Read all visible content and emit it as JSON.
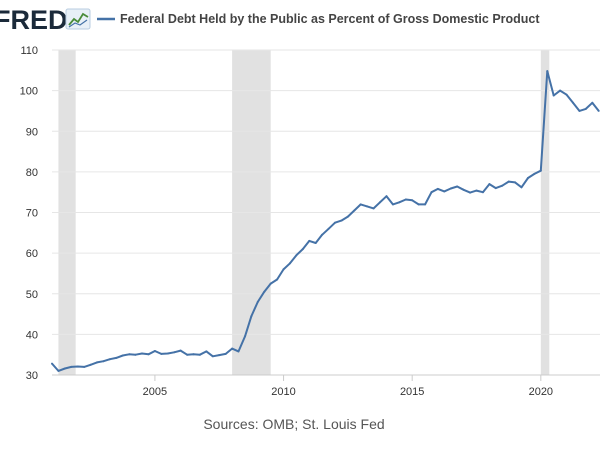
{
  "header": {
    "logo_text": "FRED",
    "logo_icon": "chart-line-icon"
  },
  "chart_data": {
    "type": "line",
    "title": "",
    "xlabel": "",
    "ylabel": "",
    "xlim": [
      2001.0,
      2022.3
    ],
    "ylim": [
      30,
      110
    ],
    "yticks": [
      30,
      40,
      50,
      60,
      70,
      80,
      90,
      100,
      110
    ],
    "xticks": [
      2005,
      2010,
      2015,
      2020
    ],
    "grid": true,
    "legend_placement": "top",
    "recessions": [
      [
        2001.25,
        2001.92
      ],
      [
        2008.0,
        2009.5
      ],
      [
        2020.0,
        2020.33
      ]
    ],
    "series": [
      {
        "name": "Federal Debt Held by the Public as Percent of Gross Domestic Product",
        "color": "#4572a7",
        "x": [
          2001.0,
          2001.25,
          2001.5,
          2001.75,
          2002.0,
          2002.25,
          2002.5,
          2002.75,
          2003.0,
          2003.25,
          2003.5,
          2003.75,
          2004.0,
          2004.25,
          2004.5,
          2004.75,
          2005.0,
          2005.25,
          2005.5,
          2005.75,
          2006.0,
          2006.25,
          2006.5,
          2006.75,
          2007.0,
          2007.25,
          2007.5,
          2007.75,
          2008.0,
          2008.25,
          2008.5,
          2008.75,
          2009.0,
          2009.25,
          2009.5,
          2009.75,
          2010.0,
          2010.25,
          2010.5,
          2010.75,
          2011.0,
          2011.25,
          2011.5,
          2011.75,
          2012.0,
          2012.25,
          2012.5,
          2012.75,
          2013.0,
          2013.25,
          2013.5,
          2013.75,
          2014.0,
          2014.25,
          2014.5,
          2014.75,
          2015.0,
          2015.25,
          2015.5,
          2015.75,
          2016.0,
          2016.25,
          2016.5,
          2016.75,
          2017.0,
          2017.25,
          2017.5,
          2017.75,
          2018.0,
          2018.25,
          2018.5,
          2018.75,
          2019.0,
          2019.25,
          2019.5,
          2019.75,
          2020.0,
          2020.25,
          2020.5,
          2020.75,
          2021.0,
          2021.25,
          2021.5,
          2021.75,
          2022.0,
          2022.25
        ],
        "values": [
          32.8,
          31.0,
          31.6,
          32.0,
          32.1,
          32.0,
          32.5,
          33.1,
          33.4,
          33.9,
          34.2,
          34.8,
          35.1,
          35.0,
          35.3,
          35.1,
          35.9,
          35.2,
          35.3,
          35.6,
          36.0,
          35.0,
          35.1,
          35.0,
          35.8,
          34.6,
          34.9,
          35.2,
          36.5,
          35.8,
          39.5,
          44.5,
          48.0,
          50.5,
          52.5,
          53.5,
          56.0,
          57.5,
          59.5,
          61.0,
          63.0,
          62.5,
          64.5,
          66.0,
          67.5,
          68.0,
          69.0,
          70.5,
          72.0,
          71.5,
          71.0,
          72.5,
          74.0,
          72.0,
          72.5,
          73.2,
          73.0,
          72.0,
          72.0,
          75.0,
          75.8,
          75.2,
          75.9,
          76.4,
          75.6,
          74.9,
          75.4,
          75.0,
          77.0,
          76.0,
          76.6,
          77.6,
          77.4,
          76.2,
          78.5,
          79.5,
          80.3,
          104.8,
          98.8,
          100.0,
          99.0,
          97.0,
          95.0,
          95.5,
          97.0,
          95.0
        ]
      }
    ]
  },
  "source": "Sources: OMB; St. Louis Fed"
}
